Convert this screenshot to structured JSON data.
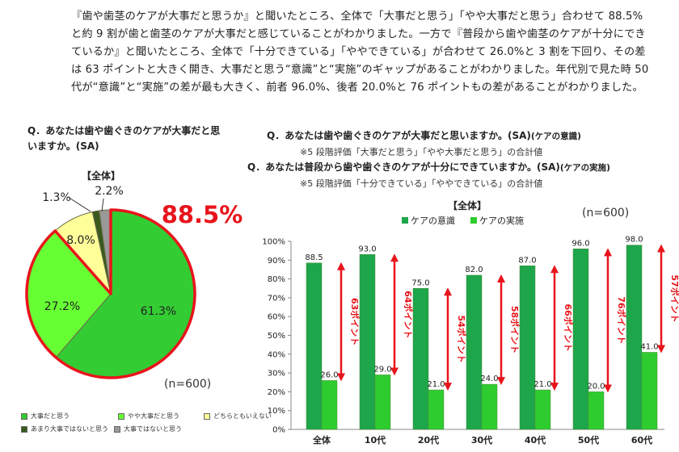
{
  "intro": "『歯や歯茎のケアが大事だと思うか』と聞いたところ、全体で「大事だと思う」「やや大事だと思う」合わせて 88.5%と約 9 割が歯と歯茎のケアが大事だと感じていることがわかりました。一方で『普段から歯や歯茎のケアが十分にできているか』と聞いたところ、全体で「十分できている」「ややできている」が合わせて 26.0%と 3 割を下回り、その差は 63 ポイントと大きく開き、大事だと思う“意識”と“実施”のギャップがあることがわかりました。年代別で見た時 50 代が“意識”と“実施”の差が最も大きく、前者 96.0%、後者 20.0%と 76 ポイントもの差があることがわかりました。",
  "pie": {
    "question": "Q．あなたは歯や歯ぐきのケアが大事だと思いますか。(SA)",
    "subtitle": "【全体】",
    "highlight": "88.5%",
    "n_label": "(n=600)",
    "colors": {
      "highlight": "#e8141b"
    }
  },
  "bar": {
    "question1": "Q．あなたは歯や歯ぐきのケアが大事だと思いますか。(SA)",
    "question1_tag": "(ケアの意識)",
    "note1": "※5 段階評価「大事だと思う」「やや大事だと思う」の合計値",
    "question2": "Q．あなたは普段から歯や歯ぐきのケアが十分にできていますか。(SA)",
    "question2_tag": "(ケアの実施)",
    "note2": "※5 段階評価「十分できている」「ややできている」の合計値",
    "n_label": "(n=600)",
    "colors": {
      "arrow": "#e8141b"
    }
  },
  "chart_data": [
    {
      "type": "pie",
      "title": "【全体】",
      "slices": [
        {
          "label": "大事だと思う",
          "value": 61.3,
          "value_label": "61.3%",
          "color": "#33cc33"
        },
        {
          "label": "やや大事だと思う",
          "value": 27.2,
          "value_label": "27.2%",
          "color": "#66ff33"
        },
        {
          "label": "どちらともいえない",
          "value": 8.0,
          "value_label": "8.0%",
          "color": "#ffff99"
        },
        {
          "label": "あまり大事ではないと思う",
          "value": 1.3,
          "value_label": "1.3%",
          "color": "#3a5a1e"
        },
        {
          "label": "大事ではないと思う",
          "value": 2.2,
          "value_label": "2.2%",
          "color": "#999999"
        }
      ],
      "legend_position": "bottom"
    },
    {
      "type": "bar",
      "title": "【全体】",
      "categories": [
        "全体",
        "10代",
        "20代",
        "30代",
        "40代",
        "50代",
        "60代"
      ],
      "series": [
        {
          "name": "ケアの意識",
          "values": [
            88.5,
            93.0,
            75.0,
            82.0,
            87.0,
            96.0,
            98.0
          ],
          "value_labels": [
            "88.5",
            "93.0",
            "75.0",
            "82.0",
            "87.0",
            "96.0",
            "98.0"
          ],
          "color": "#1ea64b"
        },
        {
          "name": "ケアの実施",
          "values": [
            26.0,
            29.0,
            21.0,
            24.0,
            21.0,
            20.0,
            41.0
          ],
          "value_labels": [
            "26.0",
            "29.0",
            "21.0",
            "24.0",
            "21.0",
            "20.0",
            "41.0"
          ],
          "color": "#2ecc2e"
        }
      ],
      "gap_labels": [
        "63ポイント",
        "64ポイント",
        "54ポイント",
        "58ポイント",
        "66ポイント",
        "76ポイント",
        "57ポイント"
      ],
      "yticks": [
        "0%",
        "10%",
        "20%",
        "30%",
        "40%",
        "50%",
        "60%",
        "70%",
        "80%",
        "90%",
        "100%"
      ],
      "ylim": [
        0,
        100
      ],
      "grid": false,
      "legend_position": "top"
    }
  ]
}
